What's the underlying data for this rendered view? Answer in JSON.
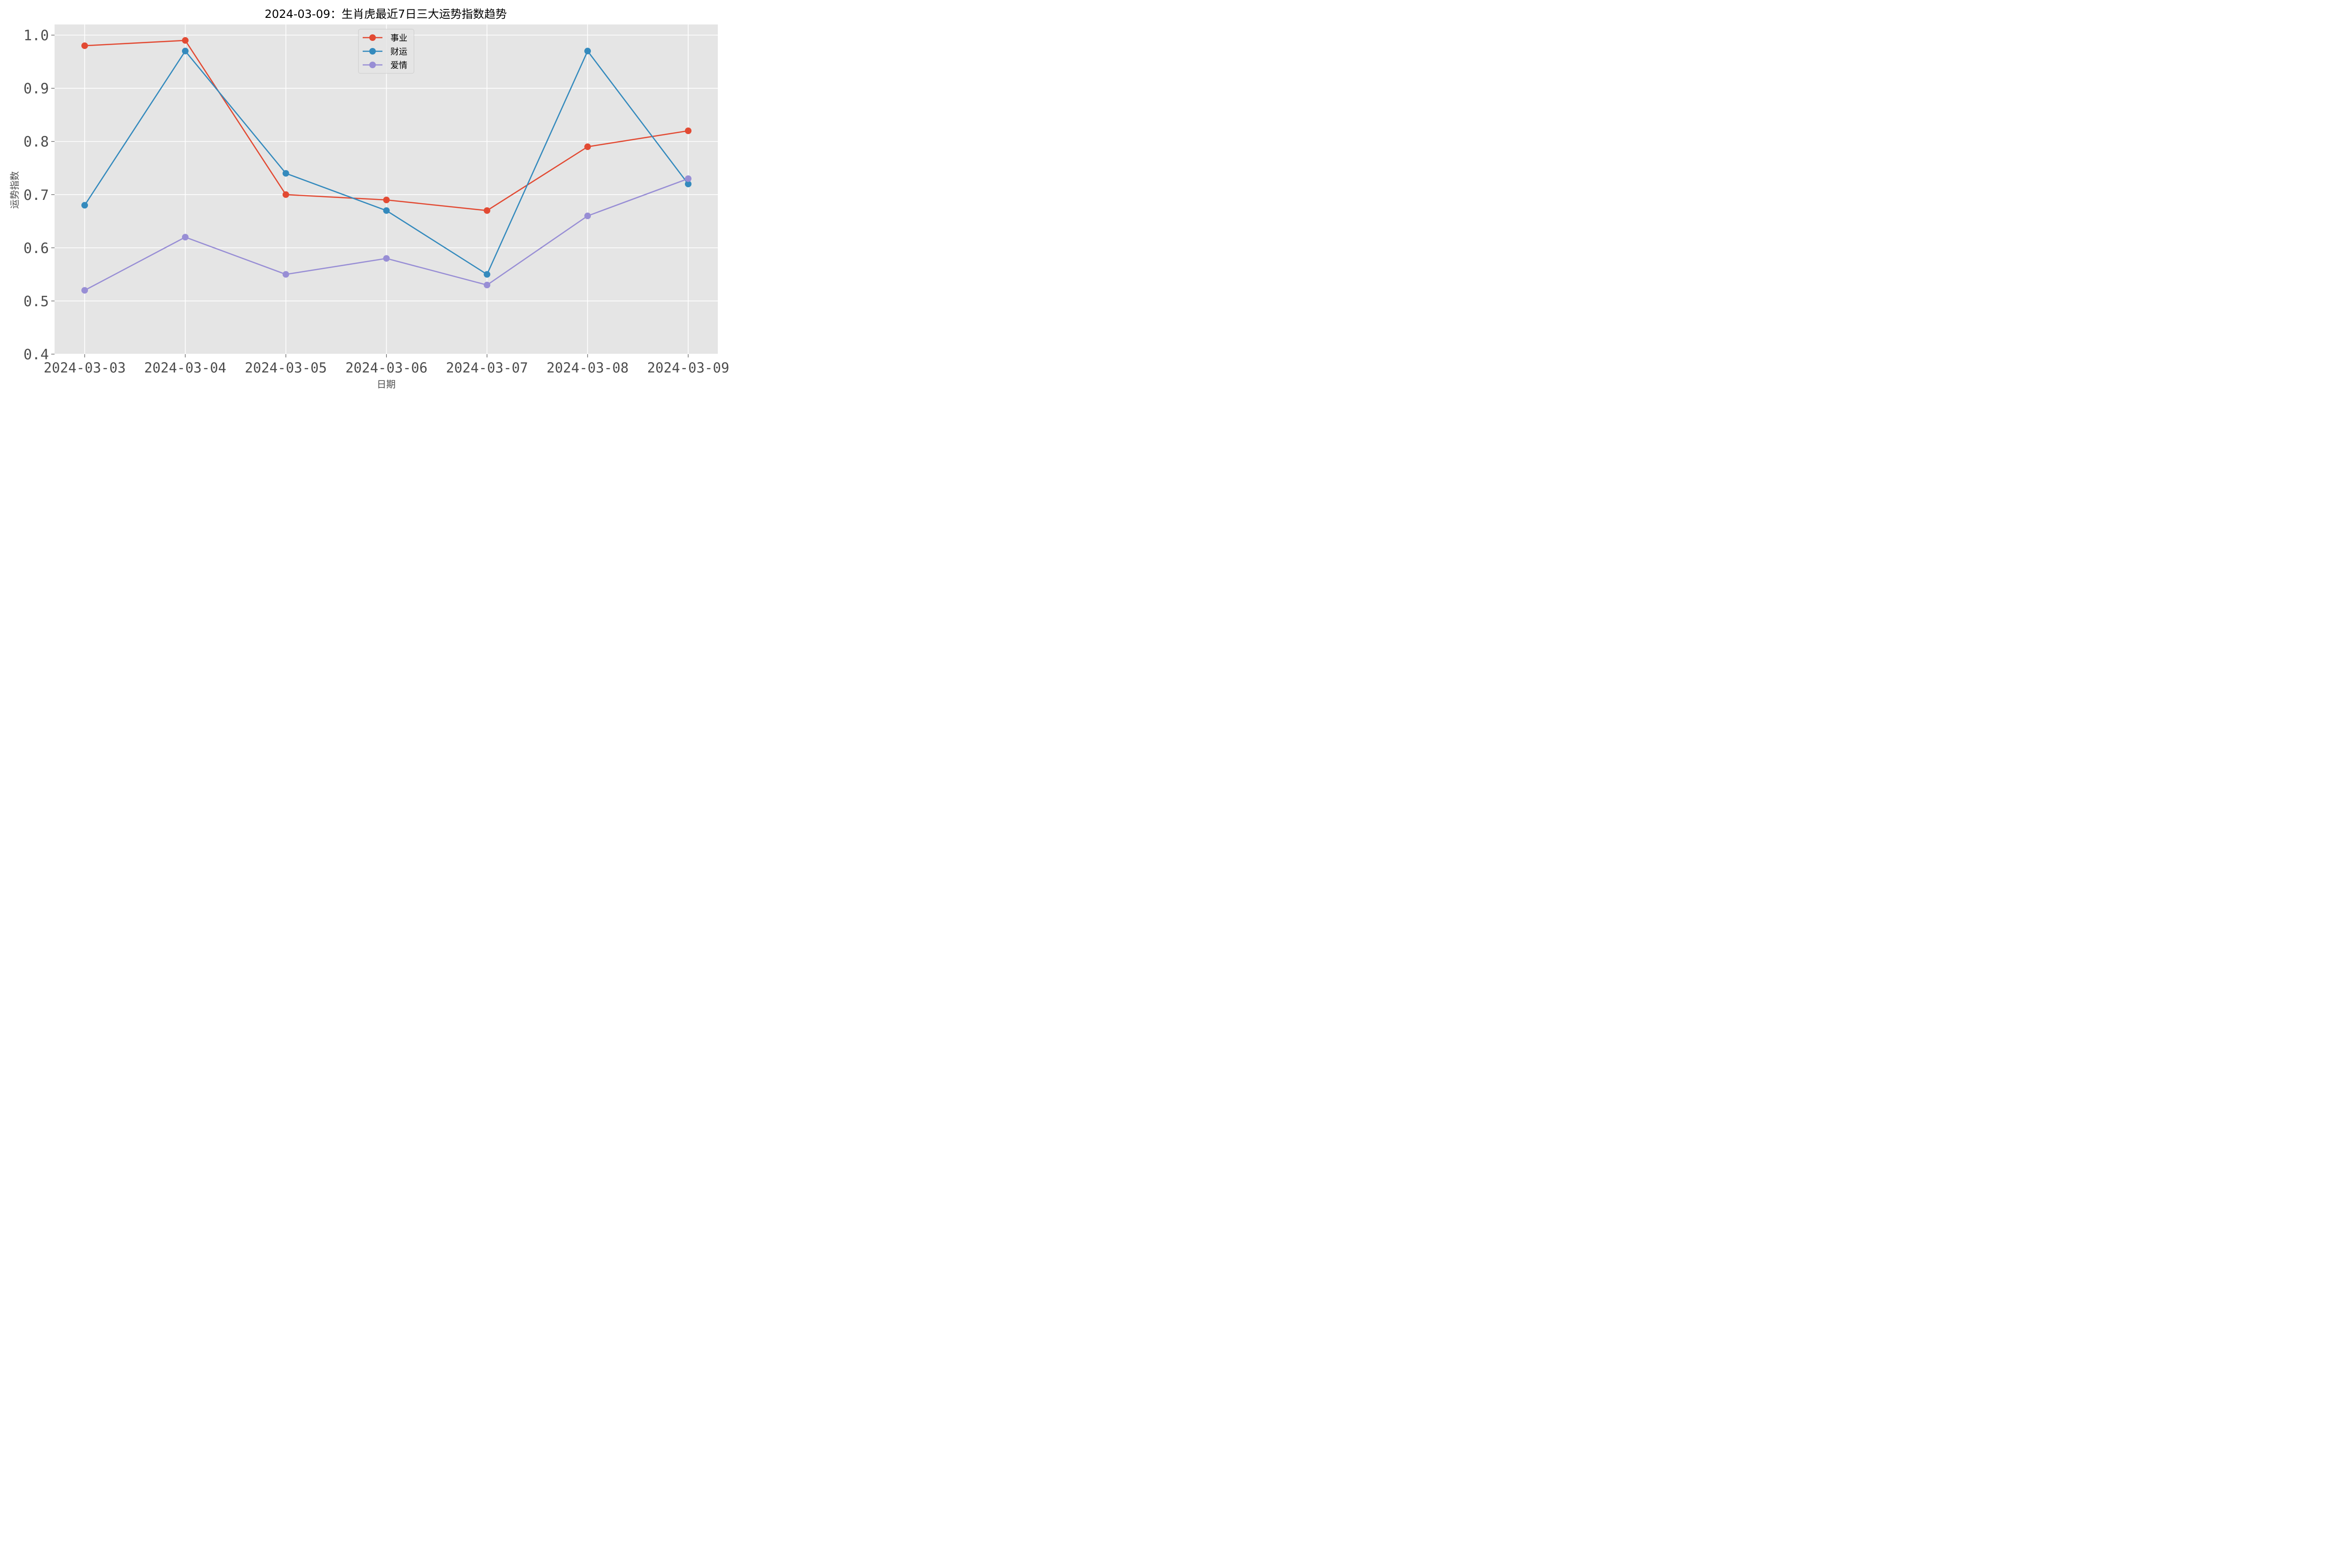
{
  "chart_data": {
    "type": "line",
    "title": "2024-03-09：生肖虎最近7日三大运势指数趋势",
    "xlabel": "日期",
    "ylabel": "运势指数",
    "categories": [
      "2024-03-03",
      "2024-03-04",
      "2024-03-05",
      "2024-03-06",
      "2024-03-07",
      "2024-03-08",
      "2024-03-09"
    ],
    "ylim": [
      0.4,
      1.02
    ],
    "yticks": [
      "0.4",
      "0.5",
      "0.6",
      "0.7",
      "0.8",
      "0.9",
      "1.0"
    ],
    "grid": true,
    "legend_position": "top-center",
    "series": [
      {
        "name": "事业",
        "color": "#E24A33",
        "values": [
          0.98,
          0.99,
          0.7,
          0.69,
          0.67,
          0.79,
          0.82
        ]
      },
      {
        "name": "财运",
        "color": "#348ABD",
        "values": [
          0.68,
          0.97,
          0.74,
          0.67,
          0.55,
          0.97,
          0.72
        ]
      },
      {
        "name": "爱情",
        "color": "#988ED5",
        "values": [
          0.52,
          0.62,
          0.55,
          0.58,
          0.53,
          0.66,
          0.73
        ]
      }
    ]
  }
}
